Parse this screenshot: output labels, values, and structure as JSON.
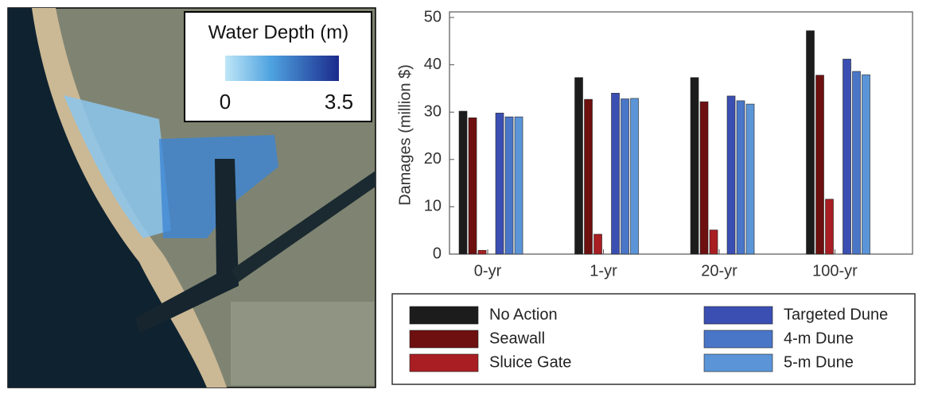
{
  "map_legend": {
    "title": "Water Depth (m)",
    "ticks": [
      0,
      3.5
    ]
  },
  "chart_data": {
    "type": "bar",
    "ylabel": "Damages (million $)",
    "categories": [
      "0-yr",
      "1-yr",
      "20-yr",
      "100-yr"
    ],
    "series": [
      {
        "name": "No Action",
        "color": "#1c1c1c",
        "values": [
          30.2,
          37.3,
          37.3,
          47.2
        ]
      },
      {
        "name": "Seawall",
        "color": "#6e1010",
        "values": [
          28.8,
          32.7,
          32.2,
          37.8
        ]
      },
      {
        "name": "Sluice Gate",
        "color": "#a81e22",
        "values": [
          0.8,
          4.2,
          5.1,
          11.6
        ]
      },
      {
        "name": "Targeted Dune",
        "color": "#3b4fb3",
        "values": [
          29.8,
          34.0,
          33.4,
          41.2
        ]
      },
      {
        "name": "4-m Dune",
        "color": "#4a76c8",
        "values": [
          29.0,
          32.8,
          32.4,
          38.6
        ]
      },
      {
        "name": "5-m Dune",
        "color": "#5b95d8",
        "values": [
          29.0,
          32.9,
          31.7,
          37.9
        ]
      }
    ],
    "ylim": [
      0,
      50
    ],
    "yticks": [
      0,
      10,
      20,
      30,
      40,
      50
    ]
  }
}
